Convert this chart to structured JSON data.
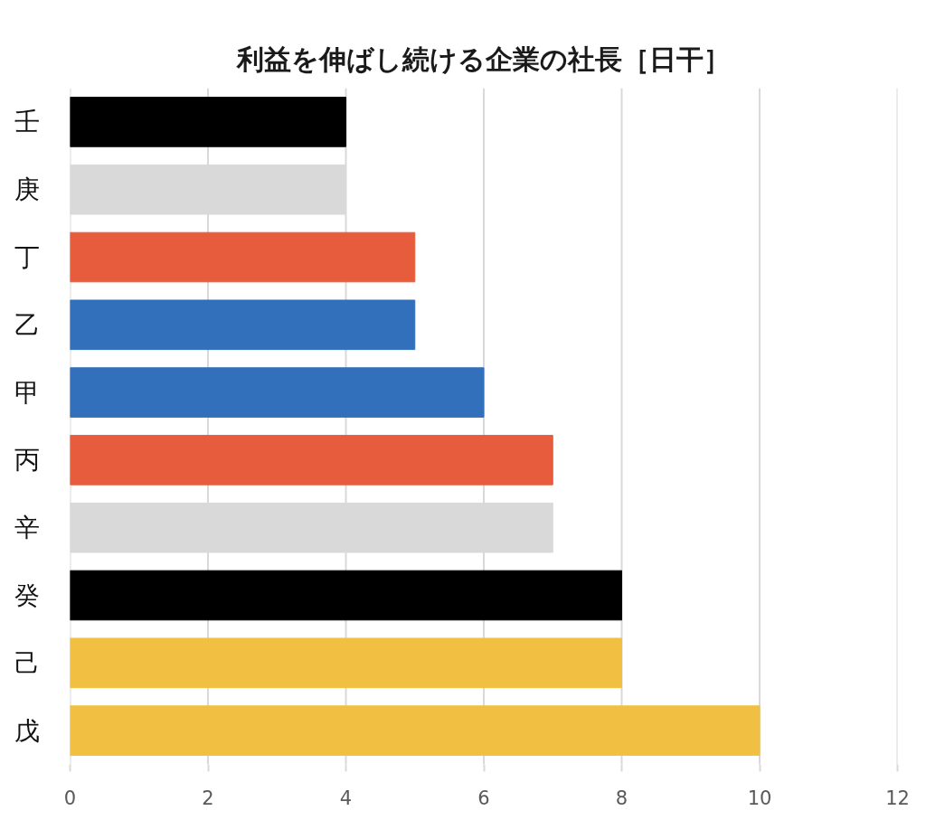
{
  "chart_data": {
    "type": "bar",
    "orientation": "horizontal",
    "title": "利益を伸ばし続ける企業の社長［日干］",
    "categories": [
      "壬",
      "庚",
      "丁",
      "乙",
      "甲",
      "丙",
      "辛",
      "癸",
      "己",
      "戊"
    ],
    "values": [
      4,
      4,
      5,
      5,
      6,
      7,
      7,
      8,
      8,
      10
    ],
    "colors": [
      "#000000",
      "#d9d9d9",
      "#e85c3e",
      "#3370bb",
      "#3370bb",
      "#e85c3e",
      "#d9d9d9",
      "#000000",
      "#f1c043",
      "#f1c043"
    ],
    "xlim": [
      0,
      12
    ],
    "xticks": [
      0,
      2,
      4,
      6,
      8,
      10,
      12
    ],
    "grid": "x"
  }
}
